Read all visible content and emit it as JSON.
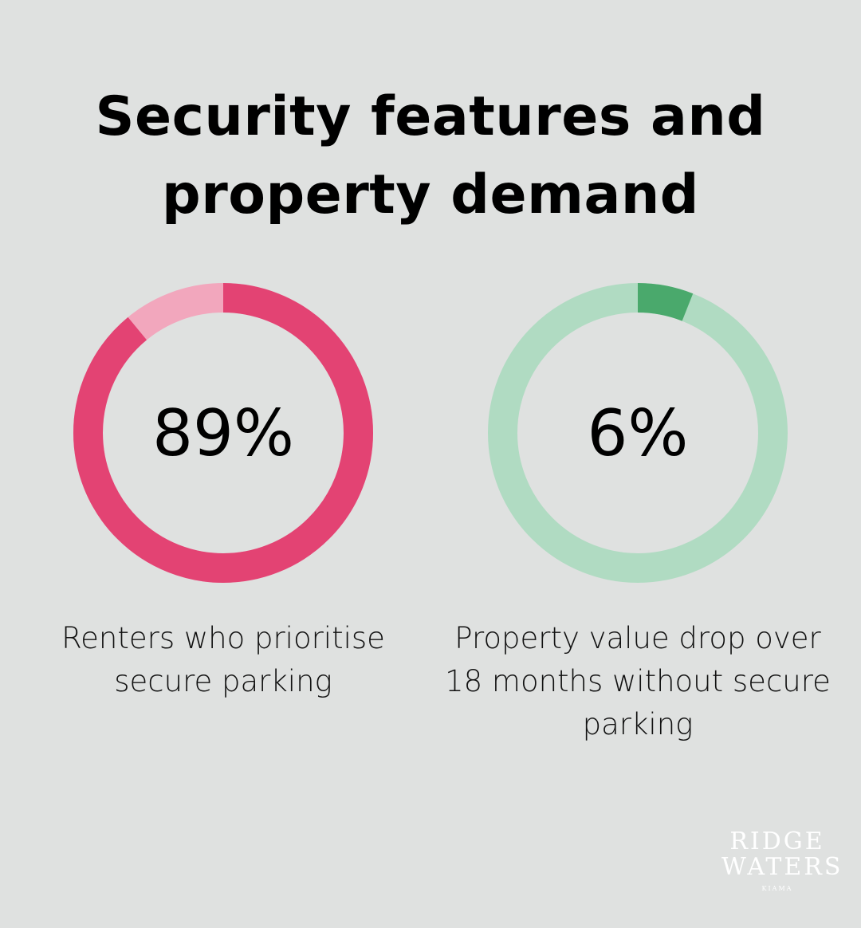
{
  "title": "Security features and property demand",
  "chart_data": [
    {
      "type": "pie",
      "variant": "donut",
      "value": 89,
      "display": "89%",
      "label": "Renters who prioritise secure parking",
      "colors": {
        "filled": "#e34373",
        "remaining": "#f2a7bd"
      }
    },
    {
      "type": "pie",
      "variant": "donut",
      "value": 6,
      "display": "6%",
      "label": "Property value drop over 18 months without secure parking",
      "colors": {
        "filled": "#4aa96c",
        "remaining": "#b0dbc2"
      }
    }
  ],
  "logo": {
    "line1": "RIDGE",
    "line2": "WATERS",
    "line3": "KIAMA"
  }
}
